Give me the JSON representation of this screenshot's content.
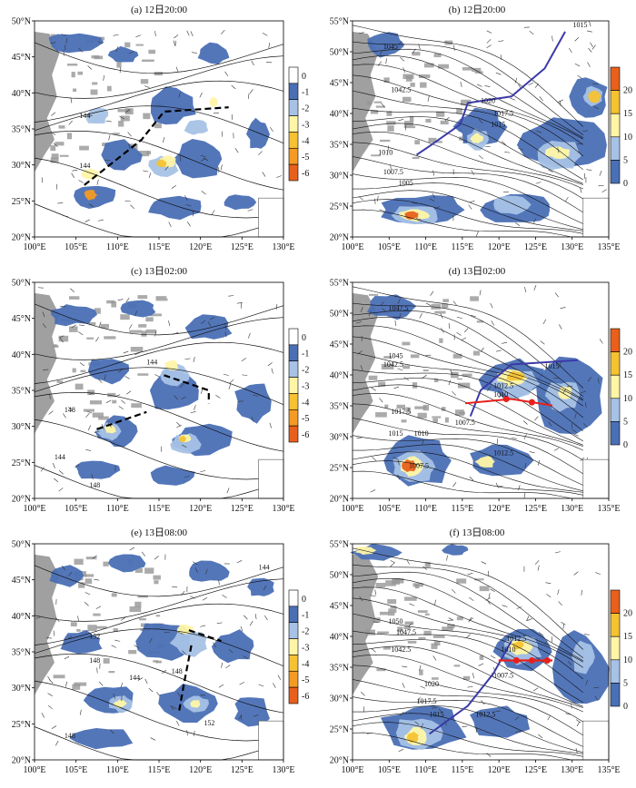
{
  "panels": [
    {
      "id": "a",
      "title": "(a) 12日20:00",
      "x_ticks": [
        "100°E",
        "105°E",
        "110°E",
        "115°E",
        "120°E",
        "125°E",
        "130°E"
      ],
      "y_ticks": [
        "50°N",
        "45°N",
        "40°N",
        "35°N",
        "30°N",
        "25°N",
        "20°N"
      ],
      "colorbar": [
        "0",
        "-1",
        "-2",
        "-3",
        "-4",
        "-5",
        "-6"
      ],
      "labels": [
        "144",
        "144"
      ]
    },
    {
      "id": "b",
      "title": "(b) 12日20:00",
      "x_ticks": [
        "100°E",
        "105°E",
        "110°E",
        "115°E",
        "120°E",
        "125°E",
        "130°E",
        "135°E"
      ],
      "y_ticks": [
        "55°N",
        "50°N",
        "45°N",
        "40°N",
        "35°N",
        "30°N",
        "25°N",
        "20°N"
      ],
      "colorbar": [
        "20",
        "15",
        "10",
        "5",
        "0"
      ],
      "labels": [
        "1015",
        "1045",
        "1042.5",
        "1020",
        "1017.5",
        "1015",
        "1010",
        "1007.5",
        "1005"
      ]
    },
    {
      "id": "c",
      "title": "(c) 13日02:00",
      "x_ticks": [
        "100°E",
        "105°E",
        "110°E",
        "115°E",
        "120°E",
        "125°E",
        "130°E"
      ],
      "y_ticks": [
        "50°N",
        "45°N",
        "40°N",
        "35°N",
        "30°N",
        "25°N",
        "20°N"
      ],
      "colorbar": [
        "0",
        "-1",
        "-2",
        "-3",
        "-4",
        "-5",
        "-6"
      ],
      "labels": [
        "144",
        "148",
        "144",
        "148"
      ]
    },
    {
      "id": "d",
      "title": "(d) 13日02:00",
      "x_ticks": [
        "100°E",
        "105°E",
        "110°E",
        "115°E",
        "120°E",
        "125°E",
        "130°E",
        "135°E"
      ],
      "y_ticks": [
        "55°N",
        "50°N",
        "45°N",
        "40°N",
        "35°N",
        "30°N",
        "25°N",
        "20°N"
      ],
      "colorbar": [
        "20",
        "15",
        "10",
        "5",
        "0"
      ],
      "labels": [
        "1047.5",
        "1045",
        "1042.5",
        "1015",
        "1012.5",
        "1010",
        "1017.5",
        "1007.5",
        "1015",
        "1010",
        "1012.5",
        "1007.5"
      ]
    },
    {
      "id": "e",
      "title": "(e) 13日08:00",
      "x_ticks": [
        "100°E",
        "105°E",
        "110°E",
        "115°E",
        "120°E",
        "125°E",
        "130°E"
      ],
      "y_ticks": [
        "50°N",
        "45°N",
        "40°N",
        "35°N",
        "30°N",
        "25°N",
        "20°N"
      ],
      "colorbar": [
        "0",
        "-1",
        "-2",
        "-3",
        "-4",
        "-5",
        "-6"
      ],
      "labels": [
        "144",
        "152",
        "148",
        "144",
        "148",
        "152",
        "148"
      ]
    },
    {
      "id": "f",
      "title": "(f) 13日08:00",
      "x_ticks": [
        "100°E",
        "105°E",
        "110°E",
        "115°E",
        "120°E",
        "125°E",
        "130°E",
        "135°E"
      ],
      "y_ticks": [
        "55°N",
        "50°N",
        "45°N",
        "40°N",
        "35°N",
        "30°N",
        "25°N",
        "20°N"
      ],
      "colorbar": [
        "20",
        "15",
        "10",
        "5",
        "0"
      ],
      "labels": [
        "1050",
        "1047.5",
        "1042.5",
        "1012.5",
        "1010",
        "1020",
        "1017.5",
        "1007.5",
        "1015",
        "1012.5"
      ]
    }
  ],
  "colors": {
    "left_scale": [
      "#ffffff",
      "#4a6fb5",
      "#a6c2e6",
      "#fff5a6",
      "#f5c231",
      "#f59a22",
      "#e8601c"
    ],
    "right_scale": [
      "#ffffff",
      "#4a6fb5",
      "#a6c2e6",
      "#fff5a6",
      "#f5c231",
      "#e8601c"
    ],
    "land": "#969696",
    "trough": "#000000",
    "warm_front": "#e8201c",
    "cold_front": "#3a3aa8"
  }
}
